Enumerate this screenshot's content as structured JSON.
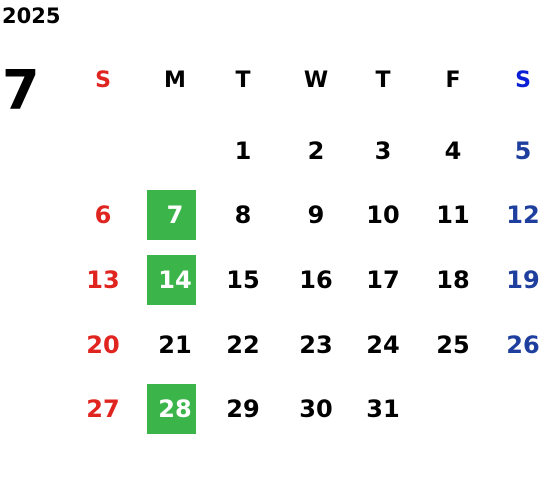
{
  "year": "2025",
  "month": "7",
  "weekdays": [
    "S",
    "M",
    "T",
    "W",
    "T",
    "F",
    "S"
  ],
  "weeks": [
    [
      null,
      null,
      1,
      2,
      3,
      4,
      5
    ],
    [
      6,
      7,
      8,
      9,
      10,
      11,
      12
    ],
    [
      13,
      14,
      15,
      16,
      17,
      18,
      19
    ],
    [
      20,
      21,
      22,
      23,
      24,
      25,
      26
    ],
    [
      27,
      28,
      29,
      30,
      31,
      null,
      null
    ]
  ],
  "highlighted_days": [
    7,
    14,
    28
  ],
  "highlight_color": "#3bb54a",
  "sunday_color": "#e0241f",
  "saturday_color": "#1f3f9e",
  "saturday_header_color": "#0a1fd6"
}
